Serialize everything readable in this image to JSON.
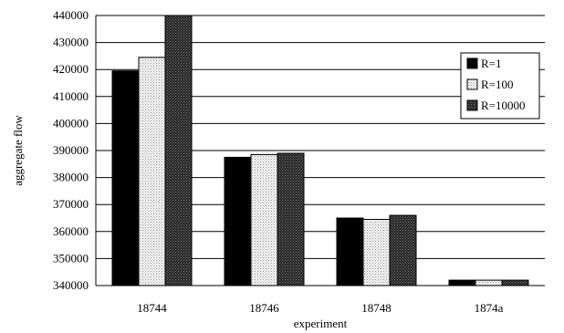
{
  "chart_data": {
    "type": "bar",
    "title": "",
    "xlabel": "experiment",
    "ylabel": "aggregate flow",
    "categories": [
      "18744",
      "18746",
      "18748",
      "1874a"
    ],
    "series": [
      {
        "name": "R=1",
        "values": [
          419500,
          387500,
          365000,
          342000
        ],
        "color": "#000000",
        "pattern": "solid"
      },
      {
        "name": "R=100",
        "values": [
          424500,
          388500,
          364500,
          342000
        ],
        "color": "#f2f2f2",
        "pattern": "dots"
      },
      {
        "name": "R=10000",
        "values": [
          440000,
          389000,
          366000,
          342000
        ],
        "color": "#3a3a3a",
        "pattern": "dark-dots"
      }
    ],
    "ylim": [
      340000,
      440000
    ],
    "yticks": [
      "340000",
      "350000",
      "360000",
      "370000",
      "380000",
      "390000",
      "400000",
      "410000",
      "420000",
      "430000",
      "440000"
    ],
    "ytick_values": [
      340000,
      350000,
      360000,
      370000,
      380000,
      390000,
      400000,
      410000,
      420000,
      430000,
      440000
    ],
    "grid": "horizontal",
    "legend_position": "top-right"
  }
}
